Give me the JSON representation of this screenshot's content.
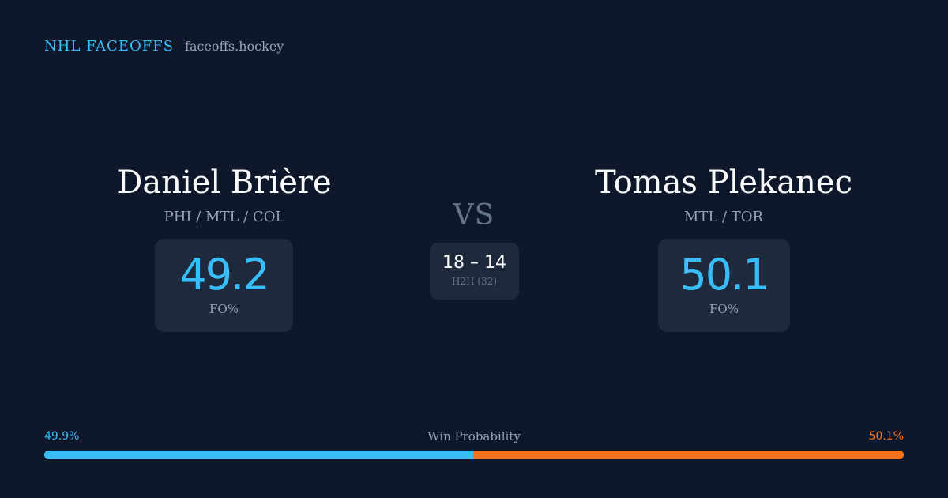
{
  "brand": {
    "name": "NHL FACEOFFS",
    "domain": "faceoffs.hockey"
  },
  "player_left": {
    "name": "Daniel Brière",
    "teams": "PHI / MTL / COL",
    "stat_value": "49.2",
    "stat_label": "FO%"
  },
  "player_right": {
    "name": "Tomas Plekanec",
    "teams": "MTL / TOR",
    "stat_value": "50.1",
    "stat_label": "FO%"
  },
  "matchup": {
    "vs": "VS",
    "h2h_score": "18 – 14",
    "h2h_label": "H2H (32)"
  },
  "win_probability": {
    "title": "Win Probability",
    "left_label": "49.9%",
    "right_label": "50.1%",
    "left_value": 49.9,
    "right_value": 50.1
  },
  "colors": {
    "background": "#0f172a",
    "card": "#1e293b",
    "left_accent": "#38bdf8",
    "right_accent": "#f97316",
    "muted": "#94a3b8"
  }
}
